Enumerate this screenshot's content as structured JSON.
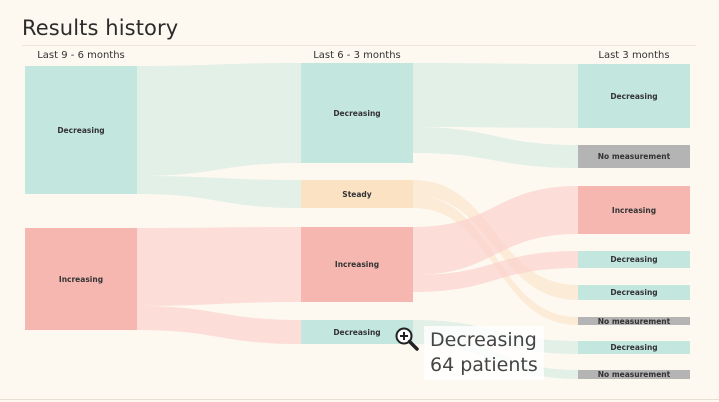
{
  "title": "Results history",
  "columns": {
    "col1": "Last 9 - 6 months",
    "col2": "Last 6 - 3 months",
    "col3": "Last 3 months"
  },
  "nodes": {
    "c1_decreasing": "Decreasing",
    "c1_increasing": "Increasing",
    "c2_decreasing": "Decreasing",
    "c2_steady": "Steady",
    "c2_increasing": "Increasing",
    "c2_decreasing_b": "Decreasing",
    "c3_decreasing_1": "Decreasing",
    "c3_no_measurement_1": "No measurement",
    "c3_increasing": "Increasing",
    "c3_decreasing_2": "Decreasing",
    "c3_decreasing_3": "Decreasing",
    "c3_no_measurement_2": "No measurement",
    "c3_decreasing_4": "Decreasing",
    "c3_no_measurement_3": "No measurement"
  },
  "tooltip": {
    "label": "Decreasing",
    "count": "64 patients",
    "icon": "zoom-in-icon"
  },
  "colors": {
    "decreasing": "#c3e6df",
    "increasing": "#f5b7b0",
    "steady": "#fae2c3",
    "no_measurement": "#b4b4b4",
    "flow_decreasing": "#d5ece2",
    "flow_increasing": "#fbd3cd",
    "flow_steady": "#fbe6cc"
  }
}
